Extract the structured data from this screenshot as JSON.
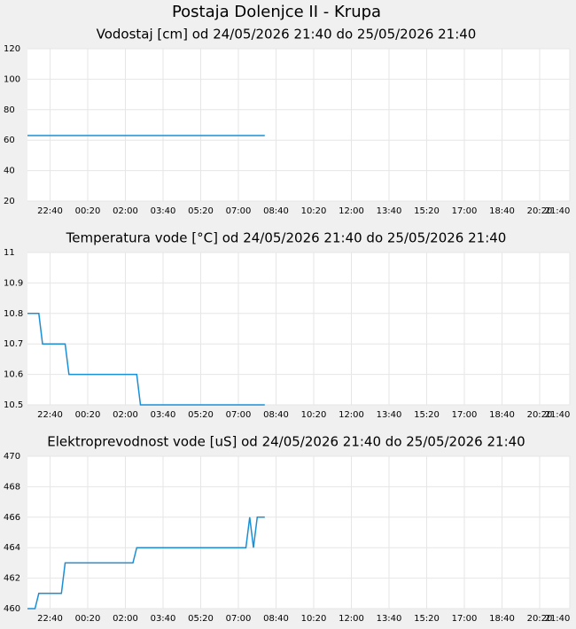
{
  "title": "Postaja Dolenjce II - Krupa",
  "chart_data": [
    {
      "type": "line",
      "title": "Vodostaj [cm] od 24/05/2026 21:40 do 25/05/2026 21:40",
      "x": [
        "24/05/2026 21:40",
        "25/05/2026 08:10"
      ],
      "series": [
        {
          "color": "#1a8fd6",
          "values": [
            63,
            63
          ]
        }
      ],
      "xlim": [
        "24/05/2026 21:40",
        "25/05/2026 21:40"
      ],
      "xticks": [
        {
          "value": "24/05/2026 22:40",
          "label": "22:40"
        },
        {
          "value": "25/05/2026 00:20",
          "label": "00:20"
        },
        {
          "value": "25/05/2026 02:00",
          "label": "02:00"
        },
        {
          "value": "25/05/2026 03:40",
          "label": "03:40"
        },
        {
          "value": "25/05/2026 05:20",
          "label": "05:20"
        },
        {
          "value": "25/05/2026 07:00",
          "label": "07:00"
        },
        {
          "value": "25/05/2026 08:40",
          "label": "08:40"
        },
        {
          "value": "25/05/2026 10:20",
          "label": "10:20"
        },
        {
          "value": "25/05/2026 12:00",
          "label": "12:00"
        },
        {
          "value": "25/05/2026 13:40",
          "label": "13:40"
        },
        {
          "value": "25/05/2026 15:20",
          "label": "15:20"
        },
        {
          "value": "25/05/2026 17:00",
          "label": "17:00"
        },
        {
          "value": "25/05/2026 18:40",
          "label": "18:40"
        },
        {
          "value": "25/05/2026 20:20",
          "label": "20:20"
        },
        {
          "value": "25/05/2026 21:40",
          "label": "21:40"
        }
      ],
      "ylim": [
        20,
        120
      ],
      "yticks": [
        20,
        40,
        60,
        80,
        100,
        120
      ],
      "grid": true
    },
    {
      "type": "line",
      "title": "Temperatura vode [°C] od 24/05/2026 21:40 do 25/05/2026 21:40",
      "x": [
        "24/05/2026 21:40",
        "24/05/2026 22:10",
        "24/05/2026 22:20",
        "24/05/2026 23:20",
        "24/05/2026 23:30",
        "25/05/2026 02:30",
        "25/05/2026 02:40",
        "25/05/2026 08:10"
      ],
      "series": [
        {
          "color": "#1a8fd6",
          "values": [
            10.8,
            10.8,
            10.7,
            10.7,
            10.6,
            10.6,
            10.5,
            10.5
          ]
        }
      ],
      "xlim": [
        "24/05/2026 21:40",
        "25/05/2026 21:40"
      ],
      "xticks": [
        {
          "value": "24/05/2026 22:40",
          "label": "22:40"
        },
        {
          "value": "25/05/2026 00:20",
          "label": "00:20"
        },
        {
          "value": "25/05/2026 02:00",
          "label": "02:00"
        },
        {
          "value": "25/05/2026 03:40",
          "label": "03:40"
        },
        {
          "value": "25/05/2026 05:20",
          "label": "05:20"
        },
        {
          "value": "25/05/2026 07:00",
          "label": "07:00"
        },
        {
          "value": "25/05/2026 08:40",
          "label": "08:40"
        },
        {
          "value": "25/05/2026 10:20",
          "label": "10:20"
        },
        {
          "value": "25/05/2026 12:00",
          "label": "12:00"
        },
        {
          "value": "25/05/2026 13:40",
          "label": "13:40"
        },
        {
          "value": "25/05/2026 15:20",
          "label": "15:20"
        },
        {
          "value": "25/05/2026 17:00",
          "label": "17:00"
        },
        {
          "value": "25/05/2026 18:40",
          "label": "18:40"
        },
        {
          "value": "25/05/2026 20:20",
          "label": "20:20"
        },
        {
          "value": "25/05/2026 21:40",
          "label": "21:40"
        }
      ],
      "ylim": [
        10.5,
        11
      ],
      "yticks": [
        10.5,
        10.6,
        10.7,
        10.8,
        10.9,
        11
      ],
      "grid": true
    },
    {
      "type": "line",
      "title": "Elektroprevodnost vode [uS] od 24/05/2026 21:40 do 25/05/2026 21:40",
      "x": [
        "24/05/2026 21:40",
        "24/05/2026 22:00",
        "24/05/2026 22:10",
        "24/05/2026 23:10",
        "24/05/2026 23:20",
        "25/05/2026 02:20",
        "25/05/2026 02:30",
        "25/05/2026 07:20",
        "25/05/2026 07:30",
        "25/05/2026 07:40",
        "25/05/2026 07:50",
        "25/05/2026 08:10"
      ],
      "series": [
        {
          "color": "#1a8fd6",
          "values": [
            460,
            460,
            461,
            461,
            463,
            463,
            464,
            464,
            466,
            464,
            466,
            466
          ]
        }
      ],
      "xlim": [
        "24/05/2026 21:40",
        "25/05/2026 21:40"
      ],
      "xticks": [
        {
          "value": "24/05/2026 22:40",
          "label": "22:40"
        },
        {
          "value": "25/05/2026 00:20",
          "label": "00:20"
        },
        {
          "value": "25/05/2026 02:00",
          "label": "02:00"
        },
        {
          "value": "25/05/2026 03:40",
          "label": "03:40"
        },
        {
          "value": "25/05/2026 05:20",
          "label": "05:20"
        },
        {
          "value": "25/05/2026 07:00",
          "label": "07:00"
        },
        {
          "value": "25/05/2026 08:40",
          "label": "08:40"
        },
        {
          "value": "25/05/2026 10:20",
          "label": "10:20"
        },
        {
          "value": "25/05/2026 12:00",
          "label": "12:00"
        },
        {
          "value": "25/05/2026 13:40",
          "label": "13:40"
        },
        {
          "value": "25/05/2026 15:20",
          "label": "15:20"
        },
        {
          "value": "25/05/2026 17:00",
          "label": "17:00"
        },
        {
          "value": "25/05/2026 18:40",
          "label": "18:40"
        },
        {
          "value": "25/05/2026 20:20",
          "label": "20:20"
        },
        {
          "value": "25/05/2026 21:40",
          "label": "21:40"
        }
      ],
      "ylim": [
        460,
        470
      ],
      "yticks": [
        460,
        462,
        464,
        466,
        468,
        470
      ],
      "grid": true
    }
  ]
}
